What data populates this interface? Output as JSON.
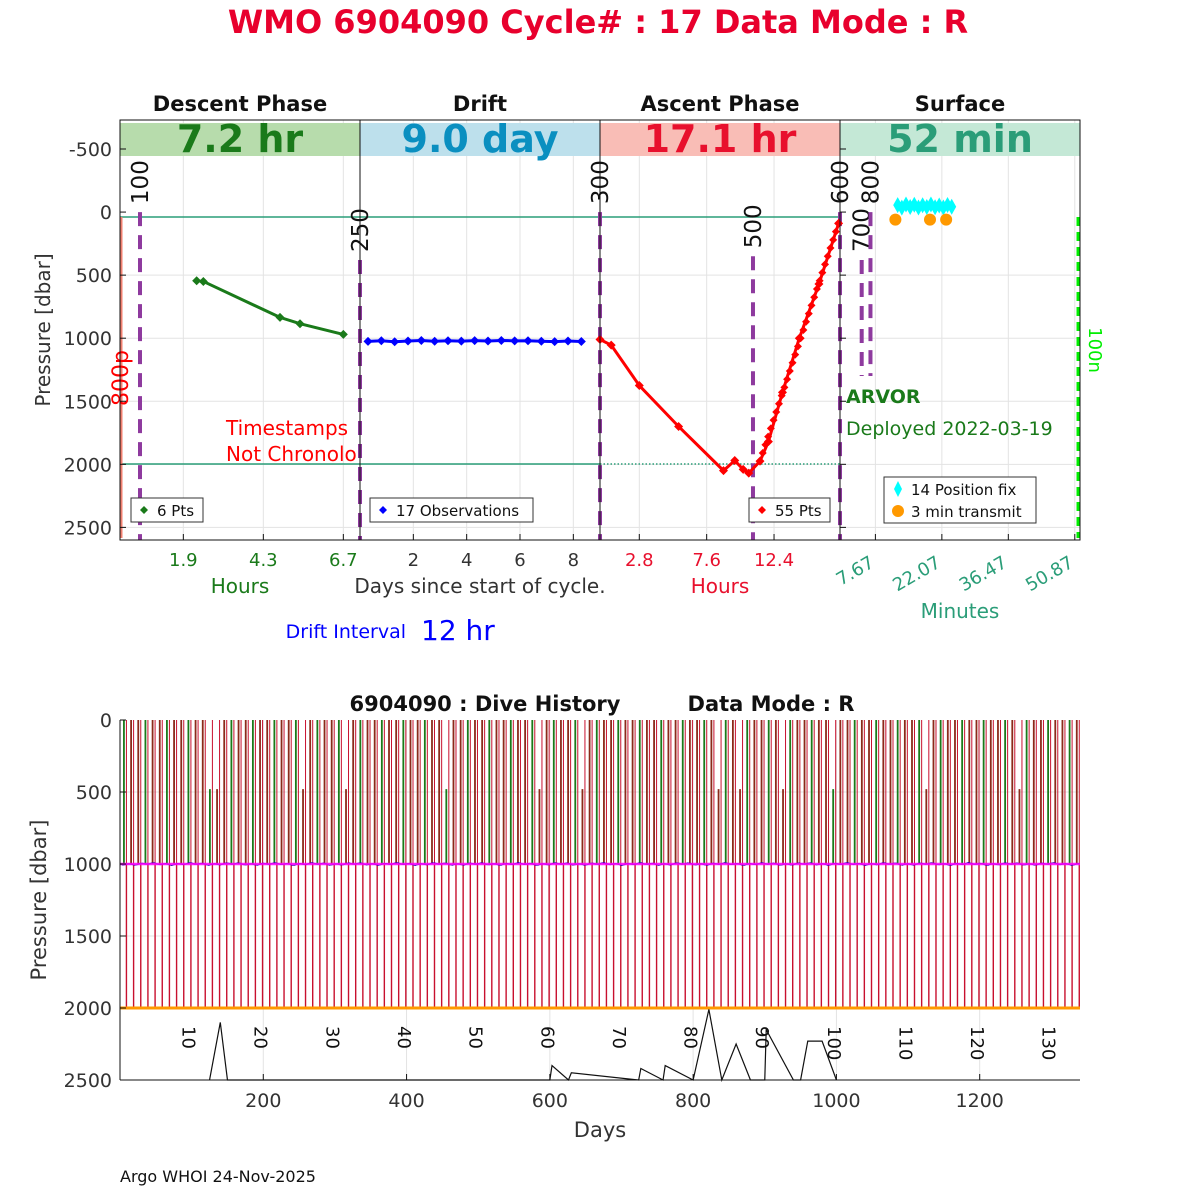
{
  "header": {
    "title": "WMO 6904090   Cycle# : 17   Data Mode : R"
  },
  "colors": {
    "title_red": "#e8002d",
    "descent_green": "#1a7a1a",
    "drift_blue": "#0000ff",
    "ascent_red": "#ff0000",
    "surface_teal": "#2a9d78",
    "phase_marker_purple": "#8e3a9e",
    "grid": "#dddddd",
    "cyan": "#00ffff",
    "orange": "#ff9900",
    "magenta": "#ff00ff",
    "lime": "#00ee00",
    "salmon": "#f08070"
  },
  "phases": [
    {
      "name": "Descent Phase",
      "duration": "7.2 hr",
      "band_color": "#b7dcac",
      "text_color": "#1a7a1a"
    },
    {
      "name": "Drift",
      "duration": "9.0 day",
      "band_color": "#bde0ec",
      "text_color": "#0a8fc0"
    },
    {
      "name": "Ascent Phase",
      "duration": "17.1 hr",
      "band_color": "#f9bdb6",
      "text_color": "#e8102d"
    },
    {
      "name": "Surface",
      "duration": "52 min",
      "band_color": "#c4e8d6",
      "text_color": "#2a9d78"
    }
  ],
  "top_chart": {
    "ylabel": "Pressure [dbar]",
    "yticks": [
      "-500",
      "0",
      "500",
      "1000",
      "1500",
      "2000",
      "2500"
    ],
    "ytick_values": [
      -500,
      0,
      500,
      1000,
      1500,
      2000,
      2500
    ],
    "ylim": [
      -730,
      2600
    ],
    "panel_axes": [
      {
        "xlabel": "Hours",
        "ticks": [
          "1.9",
          "4.3",
          "6.7"
        ],
        "tick_values": [
          1.9,
          4.3,
          6.7
        ],
        "xlim": [
          0,
          7.2
        ],
        "color": "#1a7a1a"
      },
      {
        "xlabel": "Days since start of cycle.",
        "ticks": [
          "2",
          "4",
          "6",
          "8"
        ],
        "tick_values": [
          2,
          4,
          6,
          8
        ],
        "xlim": [
          0,
          9.0
        ],
        "color": "#333333"
      },
      {
        "xlabel": "Hours",
        "ticks": [
          "2.8",
          "7.6",
          "12.4"
        ],
        "tick_values": [
          2.8,
          7.6,
          12.4
        ],
        "xlim": [
          0,
          17.1
        ],
        "color": "#e8102d"
      },
      {
        "xlabel": "Minutes",
        "ticks": [
          "7.67",
          "22.07",
          "36.47",
          "50.87"
        ],
        "tick_values": [
          7.67,
          22.07,
          36.47,
          50.87
        ],
        "xlim": [
          0,
          52
        ],
        "color": "#2a9d78"
      }
    ],
    "markers": [
      {
        "label": "100",
        "panel": 0,
        "x": 0.6,
        "top": 0,
        "bottom": 2600
      },
      {
        "label": "250",
        "panel": 0,
        "x": 7.2,
        "top": 380,
        "bottom": 2600
      },
      {
        "label": "300",
        "panel": 2,
        "x": 0,
        "top": 0,
        "bottom": 2600
      },
      {
        "label": "500",
        "panel": 2,
        "x": 10.9,
        "top": 350,
        "bottom": 2600
      },
      {
        "label": "600",
        "panel": 2,
        "x": 17.1,
        "top": 0,
        "bottom": 2600
      },
      {
        "label": "700",
        "panel": 3,
        "x": 4.7,
        "top": 380,
        "bottom": 1300
      },
      {
        "label": "800",
        "panel": 3,
        "x": 6.6,
        "top": 0,
        "bottom": 1300
      }
    ],
    "side_labels": {
      "left": "800p",
      "right": "100n"
    },
    "timestamp_warning": [
      "Timestamps",
      "Not Chronolo"
    ],
    "float_type": "ARVOR",
    "deployed": "Deployed 2022-03-19",
    "legends": {
      "descent": "6 Pts",
      "drift": "17 Observations",
      "ascent": "55 Pts",
      "surface_fix": "14 Position fix",
      "surface_transmit": "3 min transmit"
    },
    "drift_interval_label": "Drift Interval",
    "drift_interval_value": "12 hr"
  },
  "chart_data": [
    {
      "type": "line",
      "title": "Descent Phase",
      "xlabel": "Hours",
      "ylabel": "Pressure [dbar]",
      "series": [
        {
          "name": "6 Pts",
          "x": [
            2.3,
            2.5,
            4.8,
            5.4,
            6.7
          ],
          "y": [
            545,
            550,
            835,
            885,
            970
          ]
        }
      ],
      "xlim": [
        0,
        7.2
      ],
      "ylim": [
        2600,
        -730
      ]
    },
    {
      "type": "line",
      "title": "Drift",
      "xlabel": "Days since start of cycle.",
      "ylabel": "Pressure [dbar]",
      "series": [
        {
          "name": "17 Observations",
          "x": [
            0.3,
            0.8,
            1.3,
            1.8,
            2.3,
            2.8,
            3.3,
            3.8,
            4.3,
            4.8,
            5.3,
            5.8,
            6.3,
            6.8,
            7.3,
            7.8,
            8.3
          ],
          "y": [
            1025,
            1020,
            1028,
            1022,
            1018,
            1024,
            1020,
            1023,
            1019,
            1022,
            1018,
            1021,
            1020,
            1024,
            1027,
            1022,
            1026
          ]
        }
      ],
      "xlim": [
        0,
        9.0
      ],
      "ylim": [
        2600,
        -730
      ]
    },
    {
      "type": "line",
      "title": "Ascent Phase",
      "xlabel": "Hours",
      "ylabel": "Pressure [dbar]",
      "series": [
        {
          "name": "55 Pts",
          "x": [
            0,
            0.8,
            2.8,
            5.6,
            8.8,
            9.6,
            10.2,
            10.6,
            11.4,
            12.0,
            13.0,
            14.2,
            15.6,
            17.0
          ],
          "y": [
            1010,
            1055,
            1375,
            1700,
            2050,
            1970,
            2040,
            2070,
            1975,
            1820,
            1430,
            1000,
            570,
            90
          ]
        }
      ],
      "xlim": [
        0,
        17.1
      ],
      "ylim": [
        2600,
        -730
      ]
    },
    {
      "type": "scatter",
      "title": "Surface",
      "xlabel": "Minutes",
      "ylabel": "Pressure [dbar]",
      "series": [
        {
          "name": "14 Position fix",
          "x": [
            12.5,
            13.4,
            14.3,
            15.2,
            16.1,
            17.0,
            17.9,
            18.8,
            19.7,
            20.6,
            21.5,
            22.4,
            23.3,
            24.2
          ],
          "y": [
            -55,
            -35,
            -60,
            -40,
            -58,
            -36,
            -54,
            -40,
            -60,
            -38,
            -52,
            -36,
            -56,
            -42
          ]
        },
        {
          "name": "3 min transmit",
          "x": [
            12.0,
            19.5,
            23.0
          ],
          "y": [
            60,
            60,
            60
          ]
        }
      ],
      "xlim": [
        0,
        52
      ],
      "ylim": [
        2600,
        -730
      ]
    },
    {
      "type": "line",
      "title": "6904090 : Dive History      Data Mode : R",
      "xlabel": "Days",
      "ylabel": "Pressure [dbar]",
      "xticks": [
        "200",
        "400",
        "600",
        "800",
        "1000",
        "1200"
      ],
      "xtick_values": [
        200,
        400,
        600,
        800,
        1000,
        1200
      ],
      "yticks": [
        "0",
        "500",
        "1000",
        "1500",
        "2000",
        "2500"
      ],
      "ytick_values": [
        0,
        500,
        1000,
        1500,
        2000,
        2500
      ],
      "xlim": [
        0,
        1340
      ],
      "ylim": [
        2500,
        0
      ],
      "drift_pressure": 1000,
      "profile_pressure": 2000,
      "cycle_interval_days": 10,
      "first_cycle_day": 2,
      "cycle_labels": [
        "10",
        "20",
        "30",
        "40",
        "50",
        "60",
        "70",
        "80",
        "90",
        "100",
        "110",
        "120",
        "130"
      ],
      "cycle_label_days": [
        87,
        188,
        288,
        388,
        488,
        588,
        688,
        788,
        888,
        988,
        1088,
        1188,
        1288
      ],
      "bottom_trace": {
        "x": [
          125,
          140,
          150,
          600,
          603,
          626,
          630,
          724,
          727,
          758,
          761,
          800,
          822,
          840,
          860,
          880,
          900,
          902,
          940,
          950,
          960,
          980,
          1000
        ],
        "y": [
          2500,
          2100,
          2500,
          2500,
          2400,
          2500,
          2450,
          2500,
          2420,
          2500,
          2400,
          2500,
          2010,
          2500,
          2250,
          2500,
          2500,
          2150,
          2500,
          2500,
          2230,
          2230,
          2500
        ]
      }
    }
  ],
  "bottom_chart": {
    "title_left": "6904090 : Dive History",
    "title_right": "Data Mode : R",
    "ylabel": "Pressure [dbar]",
    "xlabel": "Days"
  },
  "footer": {
    "credit": "Argo WHOI 24-Nov-2025"
  }
}
